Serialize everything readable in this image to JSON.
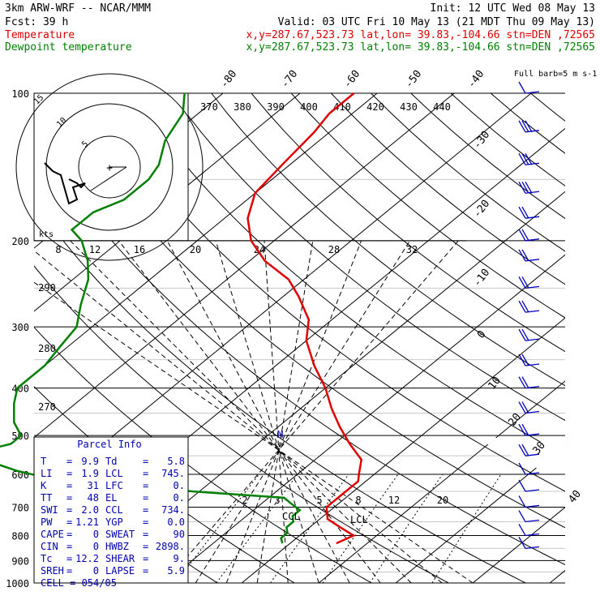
{
  "header": {
    "line1_left": "3km ARW-WRF -- NCAR/MMM",
    "line1_right": "Init: 12 UTC Wed 08 May 13",
    "line2_left": "Fcst:    39 h",
    "line2_right": "Valid: 03 UTC Fri 10 May 13 (21 MDT Thu 09 May 13)",
    "legend": [
      {
        "name": "Temperature",
        "info": "x,y=287.67,523.73   lat,lon= 39.83,-104.66  stn=DEN ,72565",
        "color": "#e00000"
      },
      {
        "name": "Dewpoint temperature",
        "info": "x,y=287.67,523.73   lat,lon= 39.83,-104.66  stn=DEN ,72565",
        "color": "#008000"
      }
    ],
    "barb_label": "Full barb=5 m s-1"
  },
  "chart_data": {
    "type": "line",
    "pressure_ticks": [
      100,
      200,
      300,
      400,
      500,
      600,
      700,
      800,
      900,
      1000
    ],
    "temperature_ticks": [
      -80,
      -70,
      -60,
      -50,
      -40,
      -30,
      -20,
      -10,
      0,
      10,
      20,
      30,
      40
    ],
    "theta_labels": [
      "370",
      "380",
      "390",
      "400",
      "410",
      "420",
      "430",
      "440"
    ],
    "theta_left_labels": [
      "290",
      "280",
      "270"
    ],
    "hodo_speed_labels": [
      "8",
      "12",
      "16",
      "20",
      "24",
      "28",
      "32"
    ],
    "mixing_ratio_labels": [
      "2",
      "3",
      "5",
      "8",
      "12",
      "20"
    ],
    "hodo_rings": [
      "5",
      "10",
      "15"
    ],
    "hodo_kts": "kts",
    "series": [
      {
        "name": "Temperature",
        "color": "#e00000",
        "points": [
          [
            830,
            6
          ],
          [
            800,
            7
          ],
          [
            780,
            5
          ],
          [
            760,
            3
          ],
          [
            740,
            1
          ],
          [
            700,
            -1
          ],
          [
            660,
            -1
          ],
          [
            620,
            -1
          ],
          [
            600,
            -2
          ],
          [
            560,
            -4
          ],
          [
            520,
            -8
          ],
          [
            480,
            -12
          ],
          [
            440,
            -16
          ],
          [
            400,
            -20
          ],
          [
            360,
            -25
          ],
          [
            320,
            -30
          ],
          [
            290,
            -33
          ],
          [
            260,
            -38
          ],
          [
            240,
            -42
          ],
          [
            220,
            -48
          ],
          [
            200,
            -53
          ],
          [
            180,
            -57
          ],
          [
            160,
            -60
          ],
          [
            140,
            -61
          ],
          [
            120,
            -62
          ],
          [
            110,
            -63
          ],
          [
            100,
            -63
          ]
        ]
      },
      {
        "name": "Dewpoint temperature",
        "color": "#008000",
        "points": [
          [
            830,
            -1
          ],
          [
            810,
            -2
          ],
          [
            790,
            -2
          ],
          [
            770,
            -3
          ],
          [
            750,
            -3
          ],
          [
            730,
            -4
          ],
          [
            710,
            -4
          ],
          [
            690,
            -6
          ],
          [
            670,
            -8
          ],
          [
            650,
            -21
          ],
          [
            630,
            -30
          ],
          [
            610,
            -42
          ],
          [
            590,
            -47
          ],
          [
            560,
            -53
          ],
          [
            540,
            -55
          ],
          [
            520,
            -52
          ],
          [
            500,
            -52
          ],
          [
            470,
            -55
          ],
          [
            430,
            -58
          ],
          [
            400,
            -60
          ],
          [
            360,
            -60
          ],
          [
            330,
            -61
          ],
          [
            300,
            -62
          ],
          [
            270,
            -65
          ],
          [
            240,
            -68
          ],
          [
            220,
            -71
          ],
          [
            200,
            -75
          ],
          [
            190,
            -78
          ],
          [
            175,
            -78
          ],
          [
            165,
            -76
          ],
          [
            150,
            -76
          ],
          [
            140,
            -77
          ],
          [
            125,
            -80
          ],
          [
            110,
            -82
          ],
          [
            100,
            -85
          ]
        ]
      }
    ],
    "hodograph": [
      [
        -10,
        -3
      ],
      [
        -8,
        -4
      ],
      [
        -7,
        -5
      ],
      [
        -6,
        -4
      ],
      [
        -9,
        -5
      ],
      [
        -8,
        -8
      ],
      [
        -10,
        -9
      ],
      [
        -12,
        -2
      ],
      [
        -14,
        -1
      ],
      [
        -16,
        1
      ]
    ]
  },
  "parcel": {
    "title": "Parcel Info",
    "rows": [
      {
        "k1": "T",
        "v1": "9.9",
        "k2": "Td",
        "v2": "5.8"
      },
      {
        "k1": "LI",
        "v1": "1.9",
        "k2": "LCL",
        "v2": "745."
      },
      {
        "k1": "K",
        "v1": "31",
        "k2": "LFC",
        "v2": "0."
      },
      {
        "k1": "TT",
        "v1": "48",
        "k2": "EL",
        "v2": "0."
      },
      {
        "k1": "SWI",
        "v1": "2.0",
        "k2": "CCL",
        "v2": "734."
      },
      {
        "k1": "PW",
        "v1": "1.21",
        "k2": "YGP",
        "v2": "0.0"
      },
      {
        "k1": "CAPE",
        "v1": "0",
        "k2": "SWEAT",
        "v2": "90"
      },
      {
        "k1": "CIN",
        "v1": "0",
        "k2": "HWBZ",
        "v2": "2898."
      },
      {
        "k1": "Tc",
        "v1": "12.2",
        "k2": "SHEAR",
        "v2": "9."
      },
      {
        "k1": "SREH",
        "v1": "0",
        "k2": "LAPSE",
        "v2": "5.9"
      }
    ],
    "cell": "CELL = 054/05"
  },
  "annotations": {
    "ccl": "CCL",
    "lcl": "LCL",
    "m": "M"
  },
  "winds": [
    {
      "p": 100,
      "n": 1
    },
    {
      "p": 120,
      "n": 3
    },
    {
      "p": 140,
      "n": 3
    },
    {
      "p": 160,
      "n": 3
    },
    {
      "p": 180,
      "n": 2
    },
    {
      "p": 200,
      "n": 2
    },
    {
      "p": 220,
      "n": 2
    },
    {
      "p": 250,
      "n": 2
    },
    {
      "p": 280,
      "n": 2
    },
    {
      "p": 320,
      "n": 2
    },
    {
      "p": 360,
      "n": 2
    },
    {
      "p": 400,
      "n": 2
    },
    {
      "p": 450,
      "n": 2
    },
    {
      "p": 500,
      "n": 2
    },
    {
      "p": 550,
      "n": 2
    },
    {
      "p": 600,
      "n": 1
    },
    {
      "p": 650,
      "n": 1
    },
    {
      "p": 700,
      "n": 1
    },
    {
      "p": 750,
      "n": 1
    },
    {
      "p": 800,
      "n": 1
    },
    {
      "p": 850,
      "n": 1
    }
  ]
}
